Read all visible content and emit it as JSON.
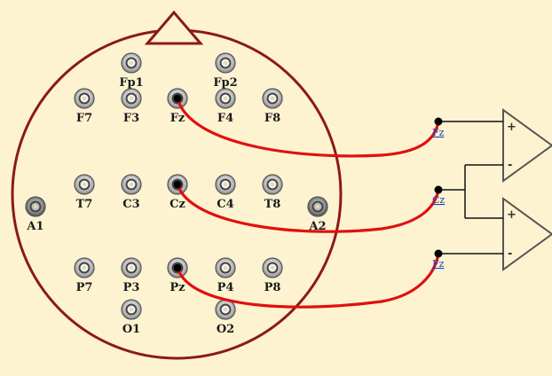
{
  "colors": {
    "background": "#fdf3d1",
    "head_outline": "#8b1a1a",
    "wire": "#e01010",
    "amp_outline": "#555555",
    "lead": "#111111",
    "channel_label": "#1f3fbf"
  },
  "head": {
    "nose": "nose-triangle",
    "electrodes": [
      {
        "id": "Fp1",
        "label": "Fp1"
      },
      {
        "id": "Fp2",
        "label": "Fp2"
      },
      {
        "id": "F7",
        "label": "F7"
      },
      {
        "id": "F3",
        "label": "F3"
      },
      {
        "id": "Fz",
        "label": "Fz"
      },
      {
        "id": "F4",
        "label": "F4"
      },
      {
        "id": "F8",
        "label": "F8"
      },
      {
        "id": "A1",
        "label": "A1"
      },
      {
        "id": "T7",
        "label": "T7"
      },
      {
        "id": "C3",
        "label": "C3"
      },
      {
        "id": "Cz",
        "label": "Cz"
      },
      {
        "id": "C4",
        "label": "C4"
      },
      {
        "id": "T8",
        "label": "T8"
      },
      {
        "id": "A2",
        "label": "A2"
      },
      {
        "id": "P7",
        "label": "P7"
      },
      {
        "id": "P3",
        "label": "P3"
      },
      {
        "id": "Pz",
        "label": "Pz"
      },
      {
        "id": "P4",
        "label": "P4"
      },
      {
        "id": "P8",
        "label": "P8"
      },
      {
        "id": "O1",
        "label": "O1"
      },
      {
        "id": "O2",
        "label": "O2"
      }
    ]
  },
  "channels": [
    {
      "label": "Fz"
    },
    {
      "label": "Cz"
    },
    {
      "label": "Fz"
    }
  ],
  "amplifiers": [
    {
      "plus": "+",
      "minus": "-"
    },
    {
      "plus": "+",
      "minus": "-"
    }
  ]
}
